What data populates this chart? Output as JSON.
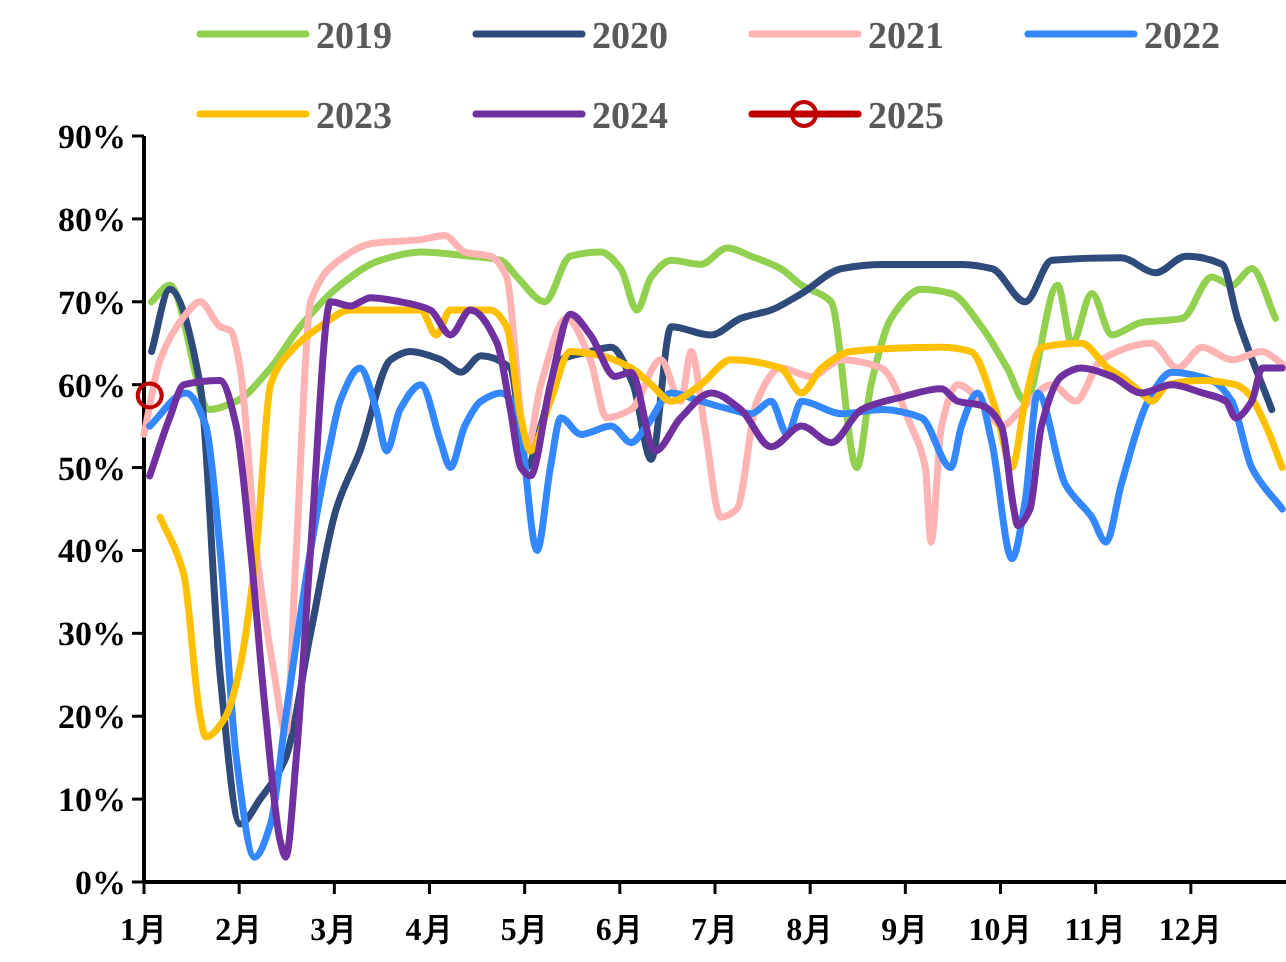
{
  "chart_data": {
    "type": "line",
    "legend": "top",
    "line_style": "solid",
    "xlim": [
      1,
      13
    ],
    "ylim": [
      0,
      90
    ],
    "xticks": [
      {
        "value": 1,
        "label": "1月"
      },
      {
        "value": 2,
        "label": "2月"
      },
      {
        "value": 3,
        "label": "3月"
      },
      {
        "value": 4,
        "label": "4月"
      },
      {
        "value": 5,
        "label": "5月"
      },
      {
        "value": 6,
        "label": "6月"
      },
      {
        "value": 7,
        "label": "7月"
      },
      {
        "value": 8,
        "label": "8月"
      },
      {
        "value": 9,
        "label": "9月"
      },
      {
        "value": 10,
        "label": "10月"
      },
      {
        "value": 11,
        "label": "11月"
      },
      {
        "value": 12,
        "label": "12月"
      }
    ],
    "yticks": [
      {
        "value": 0,
        "label": "0%"
      },
      {
        "value": 10,
        "label": "10%"
      },
      {
        "value": 20,
        "label": "20%"
      },
      {
        "value": 30,
        "label": "30%"
      },
      {
        "value": 40,
        "label": "40%"
      },
      {
        "value": 50,
        "label": "50%"
      },
      {
        "value": 60,
        "label": "60%"
      },
      {
        "value": 70,
        "label": "70%"
      },
      {
        "value": 80,
        "label": "80%"
      },
      {
        "value": 90,
        "label": "90%"
      }
    ],
    "series": [
      {
        "name": "2019",
        "color": "#92d050",
        "x": [
          1.08,
          1.27,
          1.69,
          1.97,
          2.33,
          2.64,
          3.06,
          3.48,
          3.91,
          4.43,
          4.75,
          4.92,
          5.21,
          5.48,
          5.8,
          6.01,
          6.18,
          6.33,
          6.54,
          6.85,
          7.13,
          7.38,
          7.69,
          7.91,
          8.22,
          8.49,
          8.64,
          8.85,
          9.17,
          9.48,
          9.8,
          10.07,
          10.26,
          10.6,
          10.75,
          10.96,
          11.17,
          11.48,
          11.91,
          12.22,
          12.43,
          12.64,
          12.89
        ],
        "values": [
          70,
          72,
          57,
          58,
          62,
          67,
          72,
          75,
          76,
          75.5,
          75,
          73,
          70,
          75.5,
          76,
          74,
          69,
          73,
          75,
          74.5,
          76.5,
          75.5,
          74,
          72,
          70,
          50,
          60,
          68,
          71.5,
          71,
          67,
          62,
          58,
          72,
          65,
          71,
          66,
          67.5,
          68,
          73,
          72,
          74,
          68
        ]
      },
      {
        "name": "2020",
        "color": "#2f4b7c",
        "x": [
          1.08,
          1.27,
          1.59,
          1.8,
          2.01,
          2.22,
          2.49,
          2.75,
          3.02,
          3.27,
          3.59,
          3.8,
          4.12,
          4.33,
          4.54,
          4.85,
          5.02,
          5.17,
          5.38,
          5.69,
          5.91,
          6.14,
          6.33,
          6.54,
          6.96,
          7.27,
          7.59,
          7.91,
          8.33,
          8.75,
          9.59,
          9.91,
          10.26,
          10.54,
          11.27,
          11.63,
          11.95,
          12.33,
          12.49,
          12.85
        ],
        "values": [
          64,
          71.5,
          60,
          25,
          7,
          10,
          15,
          30,
          45,
          52,
          63,
          64,
          63,
          61.5,
          63.5,
          62,
          50,
          55,
          63,
          64,
          64.5,
          60,
          51,
          67,
          66,
          68,
          69,
          71,
          74,
          74.5,
          74.5,
          74,
          70,
          75,
          75.3,
          73.5,
          75.5,
          74.5,
          68,
          57
        ]
      },
      {
        "name": "2021",
        "color": "#ffb3b3",
        "x": [
          1.0,
          1.17,
          1.44,
          1.59,
          1.8,
          1.91,
          2.01,
          2.18,
          2.37,
          2.49,
          2.6,
          2.75,
          3.11,
          3.38,
          3.91,
          4.16,
          4.37,
          4.64,
          4.81,
          5.02,
          5.17,
          5.44,
          5.69,
          5.86,
          6.12,
          6.43,
          6.64,
          6.75,
          6.89,
          7.06,
          7.23,
          7.44,
          7.69,
          8.01,
          8.33,
          8.75,
          9.06,
          9.21,
          9.27,
          9.38,
          9.55,
          9.8,
          10.01,
          10.22,
          10.54,
          10.79,
          11.06,
          11.59,
          11.86,
          12.12,
          12.43,
          12.75,
          12.96
        ],
        "values": [
          54,
          63,
          68.5,
          70,
          67,
          66.5,
          62,
          40,
          25,
          18,
          40,
          70,
          75.5,
          77,
          77.5,
          78,
          76,
          75.5,
          73,
          52,
          60,
          68,
          63,
          56,
          57,
          63,
          58,
          64,
          55,
          44,
          45,
          58,
          62,
          61,
          63,
          62,
          55,
          50,
          41,
          55,
          60,
          58,
          55,
          57,
          60,
          58,
          63,
          65,
          62,
          64.5,
          63,
          64,
          62.5
        ]
      },
      {
        "name": "2022",
        "color": "#3388ff",
        "x": [
          1.06,
          1.44,
          1.65,
          1.8,
          1.97,
          2.16,
          2.33,
          2.49,
          2.75,
          2.96,
          3.06,
          3.27,
          3.44,
          3.55,
          3.69,
          3.91,
          4.12,
          4.22,
          4.37,
          4.54,
          4.75,
          4.92,
          5.13,
          5.27,
          5.38,
          5.59,
          5.91,
          6.12,
          6.28,
          6.54,
          6.85,
          7.17,
          7.38,
          7.59,
          7.76,
          7.91,
          8.33,
          8.75,
          9.17,
          9.48,
          9.59,
          9.76,
          9.91,
          10.12,
          10.26,
          10.39,
          10.68,
          10.96,
          11.11,
          11.27,
          11.55,
          11.8,
          12.22,
          12.43,
          12.64,
          12.96
        ],
        "values": [
          55,
          59,
          55,
          40,
          15,
          3,
          7,
          20,
          40,
          53,
          58,
          62,
          57,
          52,
          57,
          60,
          53,
          50,
          55,
          58,
          59,
          57,
          40,
          50,
          56,
          54,
          55,
          53,
          55,
          59,
          58,
          57,
          56.5,
          58,
          54,
          58,
          56.5,
          57,
          56,
          50,
          55,
          59,
          53,
          39,
          46,
          59,
          48,
          44,
          41,
          48,
          58,
          61.5,
          60.5,
          58,
          50,
          45
        ]
      },
      {
        "name": "2023",
        "color": "#ffc000",
        "x": [
          1.17,
          1.42,
          1.59,
          1.65,
          1.86,
          2.01,
          2.18,
          2.33,
          2.54,
          2.85,
          3.17,
          3.91,
          4.07,
          4.22,
          4.64,
          4.81,
          4.96,
          5.06,
          5.27,
          5.48,
          5.8,
          6.12,
          6.33,
          6.54,
          6.85,
          7.17,
          7.69,
          7.91,
          8.12,
          8.43,
          9.38,
          9.69,
          9.95,
          10.12,
          10.26,
          10.43,
          10.85,
          11.13,
          11.27,
          11.48,
          11.59,
          11.76,
          12.12,
          12.47,
          12.6,
          12.79,
          12.96
        ],
        "values": [
          44,
          37,
          20,
          17.5,
          20,
          26,
          40,
          60,
          64,
          67,
          69,
          69,
          66,
          69,
          69,
          67,
          56,
          52,
          58,
          64,
          63.5,
          62,
          60,
          58,
          60,
          63,
          62,
          59,
          62,
          64,
          64.5,
          64,
          57,
          50,
          58,
          64.5,
          65,
          62,
          61,
          59,
          58,
          60,
          60.5,
          60,
          59,
          55,
          50
        ]
      },
      {
        "name": "2024",
        "color": "#7030a0",
        "x": [
          1.06,
          1.27,
          1.42,
          1.8,
          1.97,
          2.12,
          2.28,
          2.43,
          2.49,
          2.6,
          2.75,
          2.96,
          3.17,
          3.38,
          3.69,
          4.01,
          4.22,
          4.43,
          4.71,
          4.85,
          4.96,
          5.06,
          5.27,
          5.48,
          5.69,
          5.95,
          6.12,
          6.37,
          6.64,
          6.96,
          7.27,
          7.59,
          7.91,
          8.22,
          8.54,
          8.96,
          9.38,
          9.55,
          9.8,
          10.01,
          10.14,
          10.18,
          10.31,
          10.43,
          10.64,
          10.85,
          11.17,
          11.48,
          11.8,
          12.12,
          12.37,
          12.47,
          12.64,
          12.75,
          12.96
        ],
        "values": [
          49,
          56,
          60,
          60.5,
          55,
          40,
          20,
          5,
          3,
          15,
          40,
          70,
          69.5,
          70.5,
          70,
          69,
          66,
          69,
          65,
          57,
          50,
          49,
          60,
          68.5,
          66,
          61,
          61.5,
          52,
          56,
          59,
          57,
          52.5,
          55,
          53,
          57,
          58.5,
          59.5,
          58,
          57.5,
          55,
          45,
          43,
          45,
          55,
          61,
          62,
          61,
          59,
          60,
          59,
          58,
          56,
          58,
          62,
          62
        ]
      },
      {
        "name": "2025",
        "color": "#c00000",
        "marker": "circle",
        "x": [
          1.06
        ],
        "values": [
          58.7
        ]
      }
    ]
  }
}
